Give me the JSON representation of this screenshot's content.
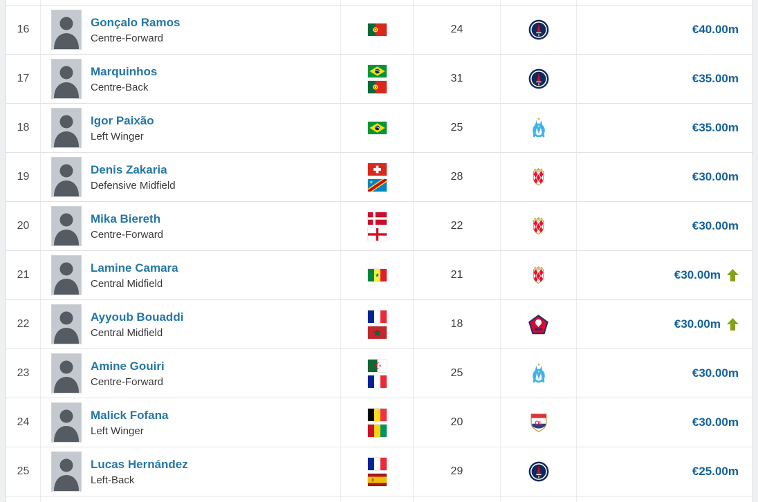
{
  "table": {
    "rows": [
      {
        "rank": "16",
        "name": "Gonçalo Ramos",
        "position": "Centre-Forward",
        "nationalities": [
          "Portugal"
        ],
        "age": "24",
        "club": "Paris Saint-Germain",
        "market_value": "€40.00m",
        "trend": ""
      },
      {
        "rank": "17",
        "name": "Marquinhos",
        "position": "Centre-Back",
        "nationalities": [
          "Brazil",
          "Portugal"
        ],
        "age": "31",
        "club": "Paris Saint-Germain",
        "market_value": "€35.00m",
        "trend": ""
      },
      {
        "rank": "18",
        "name": "Igor Paixão",
        "position": "Left Winger",
        "nationalities": [
          "Brazil"
        ],
        "age": "25",
        "club": "Olympique Marseille",
        "market_value": "€35.00m",
        "trend": ""
      },
      {
        "rank": "19",
        "name": "Denis Zakaria",
        "position": "Defensive Midfield",
        "nationalities": [
          "Switzerland",
          "DR Congo"
        ],
        "age": "28",
        "club": "AS Monaco",
        "market_value": "€30.00m",
        "trend": ""
      },
      {
        "rank": "20",
        "name": "Mika Biereth",
        "position": "Centre-Forward",
        "nationalities": [
          "Denmark",
          "England"
        ],
        "age": "22",
        "club": "AS Monaco",
        "market_value": "€30.00m",
        "trend": ""
      },
      {
        "rank": "21",
        "name": "Lamine Camara",
        "position": "Central Midfield",
        "nationalities": [
          "Senegal"
        ],
        "age": "21",
        "club": "AS Monaco",
        "market_value": "€30.00m",
        "trend": "up"
      },
      {
        "rank": "22",
        "name": "Ayyoub Bouaddi",
        "position": "Central Midfield",
        "nationalities": [
          "France",
          "Morocco"
        ],
        "age": "18",
        "club": "LOSC Lille",
        "market_value": "€30.00m",
        "trend": "up"
      },
      {
        "rank": "23",
        "name": "Amine Gouiri",
        "position": "Centre-Forward",
        "nationalities": [
          "Algeria",
          "France"
        ],
        "age": "25",
        "club": "Olympique Marseille",
        "market_value": "€30.00m",
        "trend": ""
      },
      {
        "rank": "24",
        "name": "Malick Fofana",
        "position": "Left Winger",
        "nationalities": [
          "Belgium",
          "Guinea"
        ],
        "age": "20",
        "club": "Olympique Lyon",
        "market_value": "€30.00m",
        "trend": ""
      },
      {
        "rank": "25",
        "name": "Lucas Hernández",
        "position": "Left-Back",
        "nationalities": [
          "France",
          "Spain"
        ],
        "age": "29",
        "club": "Paris Saint-Germain",
        "market_value": "€25.00m",
        "trend": ""
      }
    ]
  },
  "icons": {
    "trend_up": "green-up-arrow-icon",
    "photo_placeholder": "player-portrait-icon"
  },
  "colors": {
    "player_link": "#2577a5",
    "market_value": "#13619b",
    "trend_up_green": "#84a318",
    "row_border": "#e0e1e2",
    "column_border": "#ececec",
    "page_background": "#eef0f1",
    "table_background": "#ffffff",
    "rank_text": "#4c4c4c",
    "position_text": "#3a3a3a"
  }
}
